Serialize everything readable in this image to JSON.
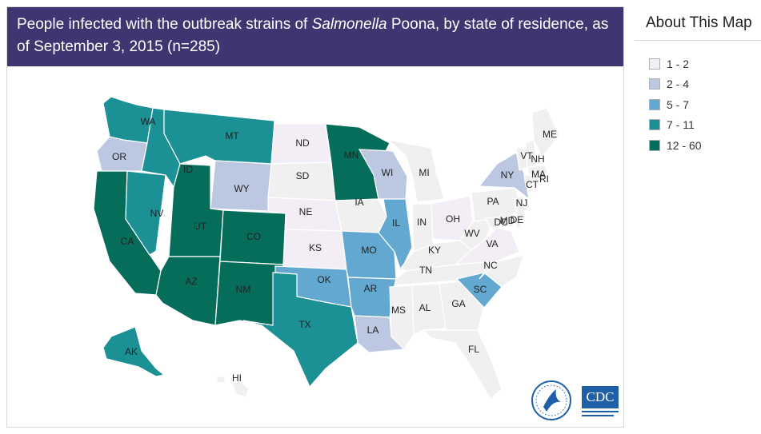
{
  "header": {
    "title_pre": "People infected with the outbreak strains of ",
    "title_italic": "Salmonella",
    "title_post": " Poona, by state of residence, as of September 3, 2015 (n=285)"
  },
  "about": {
    "title": "About This Map"
  },
  "legend": [
    {
      "label": "1 - 2",
      "color": "#f3eef6"
    },
    {
      "label": "2 - 4",
      "color": "#bcc7e1"
    },
    {
      "label": "5 - 7",
      "color": "#63a8d0"
    },
    {
      "label": "7 - 11",
      "color": "#1b9095"
    },
    {
      "label": "12 - 60",
      "color": "#066d5a"
    }
  ],
  "no_cases_color": "#f0f0f0",
  "states": [
    {
      "abbr": "WA",
      "class": 4
    },
    {
      "abbr": "OR",
      "class": 2
    },
    {
      "abbr": "CA",
      "class": 5
    },
    {
      "abbr": "NV",
      "class": 4
    },
    {
      "abbr": "ID",
      "class": 4
    },
    {
      "abbr": "MT",
      "class": 4
    },
    {
      "abbr": "WY",
      "class": 2
    },
    {
      "abbr": "UT",
      "class": 5
    },
    {
      "abbr": "AZ",
      "class": 5
    },
    {
      "abbr": "CO",
      "class": 5
    },
    {
      "abbr": "NM",
      "class": 5
    },
    {
      "abbr": "ND",
      "class": 1
    },
    {
      "abbr": "SD",
      "class": 0
    },
    {
      "abbr": "NE",
      "class": 1
    },
    {
      "abbr": "KS",
      "class": 1
    },
    {
      "abbr": "OK",
      "class": 3
    },
    {
      "abbr": "TX",
      "class": 4
    },
    {
      "abbr": "MN",
      "class": 5
    },
    {
      "abbr": "IA",
      "class": 0
    },
    {
      "abbr": "MO",
      "class": 3
    },
    {
      "abbr": "AR",
      "class": 3
    },
    {
      "abbr": "LA",
      "class": 2
    },
    {
      "abbr": "WI",
      "class": 2
    },
    {
      "abbr": "IL",
      "class": 3
    },
    {
      "abbr": "MI",
      "class": 0
    },
    {
      "abbr": "IN",
      "class": 0
    },
    {
      "abbr": "OH",
      "class": 1
    },
    {
      "abbr": "KY",
      "class": 0
    },
    {
      "abbr": "TN",
      "class": 0
    },
    {
      "abbr": "MS",
      "class": 0
    },
    {
      "abbr": "AL",
      "class": 0
    },
    {
      "abbr": "GA",
      "class": 0
    },
    {
      "abbr": "FL",
      "class": 0
    },
    {
      "abbr": "SC",
      "class": 3
    },
    {
      "abbr": "NC",
      "class": 0
    },
    {
      "abbr": "VA",
      "class": 1
    },
    {
      "abbr": "WV",
      "class": 0
    },
    {
      "abbr": "PA",
      "class": 0
    },
    {
      "abbr": "NY",
      "class": 2
    },
    {
      "abbr": "VT",
      "class": 0
    },
    {
      "abbr": "NH",
      "class": 0
    },
    {
      "abbr": "ME",
      "class": 0
    },
    {
      "abbr": "MA",
      "class": 0
    },
    {
      "abbr": "RI",
      "class": 0
    },
    {
      "abbr": "CT",
      "class": 0
    },
    {
      "abbr": "NJ",
      "class": 0
    },
    {
      "abbr": "DE",
      "class": 0
    },
    {
      "abbr": "MD",
      "class": 0
    },
    {
      "abbr": "DC",
      "class": 0
    },
    {
      "abbr": "AK",
      "class": 4
    },
    {
      "abbr": "HI",
      "class": 0
    }
  ],
  "logos": {
    "cdc": "CDC"
  }
}
